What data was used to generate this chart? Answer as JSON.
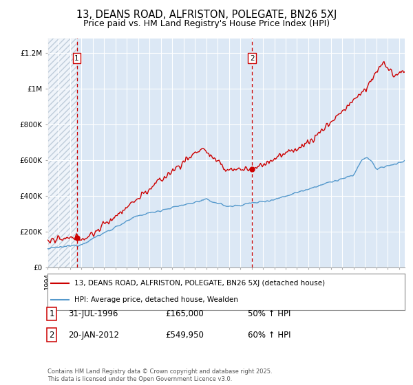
{
  "title": "13, DEANS ROAD, ALFRISTON, POLEGATE, BN26 5XJ",
  "subtitle": "Price paid vs. HM Land Registry's House Price Index (HPI)",
  "ylabel_ticks": [
    "£0",
    "£200K",
    "£400K",
    "£600K",
    "£800K",
    "£1M",
    "£1.2M"
  ],
  "ytick_values": [
    0,
    200000,
    400000,
    600000,
    800000,
    1000000,
    1200000
  ],
  "ylim": [
    0,
    1280000
  ],
  "xlim_start": 1994.0,
  "xlim_end": 2025.5,
  "purchase1_x": 1996.58,
  "purchase1_y": 165000,
  "purchase1_label": "1",
  "purchase1_date": "31-JUL-1996",
  "purchase1_price": "£165,000",
  "purchase1_hpi": "50% ↑ HPI",
  "purchase2_x": 2012.05,
  "purchase2_y": 549950,
  "purchase2_label": "2",
  "purchase2_date": "20-JAN-2012",
  "purchase2_price": "£549,950",
  "purchase2_hpi": "60% ↑ HPI",
  "line1_color": "#cc0000",
  "line2_color": "#5599cc",
  "marker_color": "#cc0000",
  "vline_color": "#cc0000",
  "plot_bg_color": "#dce8f5",
  "background_color": "#ffffff",
  "grid_color": "#ffffff",
  "legend_line1": "13, DEANS ROAD, ALFRISTON, POLEGATE, BN26 5XJ (detached house)",
  "legend_line2": "HPI: Average price, detached house, Wealden",
  "footer": "Contains HM Land Registry data © Crown copyright and database right 2025.\nThis data is licensed under the Open Government Licence v3.0.",
  "title_fontsize": 10.5,
  "subtitle_fontsize": 9,
  "axis_fontsize": 7.5,
  "table_fontsize": 8.5
}
